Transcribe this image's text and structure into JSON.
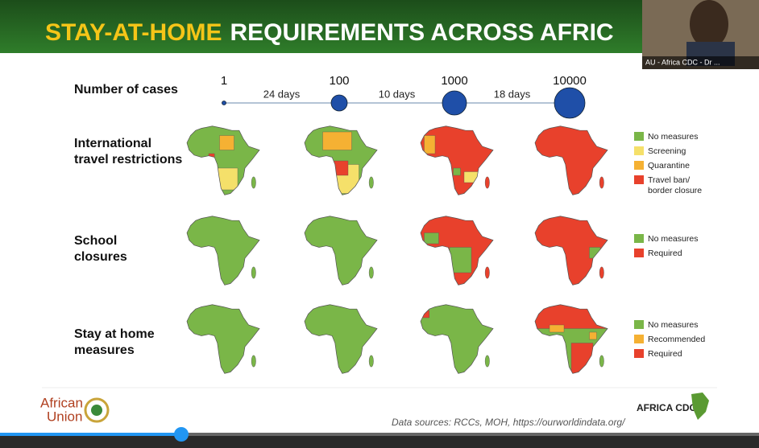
{
  "slide": {
    "title": {
      "highlight": "STAY-AT-HOME",
      "rest": "REQUIREMENTS ACROSS AFRIC"
    },
    "webcam": {
      "label": "AU - Africa CDC - Dr ..."
    },
    "timeline": {
      "label": "Number of cases",
      "milestones": [
        "1",
        "100",
        "1000",
        "10000"
      ],
      "intervals": [
        "24 days",
        "10 days",
        "18 days"
      ]
    },
    "rows": [
      {
        "label": [
          "International",
          "travel restrictions"
        ],
        "legend": [
          [
            "No measures"
          ],
          [
            "Screening"
          ],
          [
            "Quarantine"
          ],
          [
            "Travel ban/",
            "border closure"
          ]
        ]
      },
      {
        "label": [
          "School",
          "closures"
        ],
        "legend": [
          [
            "No measures"
          ],
          [
            "Required"
          ]
        ]
      },
      {
        "label": [
          "Stay at home",
          "measures"
        ],
        "legend": [
          [
            "No measures"
          ],
          [
            "Recommended"
          ],
          [
            "Required"
          ]
        ]
      }
    ],
    "footer": {
      "au_logo": [
        "African",
        "Union"
      ],
      "source": "Data sources: RCCs, MOH, https://ourworldindata.org/",
      "cdc_logo": "AFRICA CDC"
    }
  }
}
